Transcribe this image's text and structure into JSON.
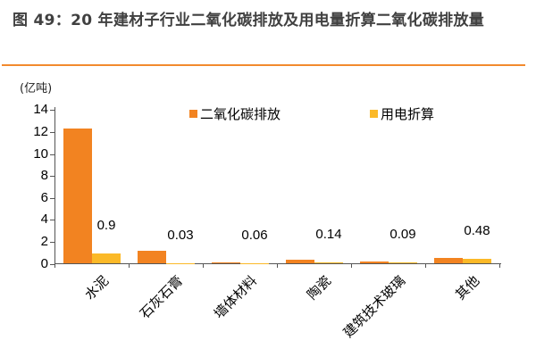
{
  "figure": {
    "title": "图 49：20 年建材子行业二氧化碳排放及用电量折算二氧化碳排放量",
    "unit_label": "(亿吨)"
  },
  "legend": [
    {
      "label": "二氧化碳排放",
      "color": "#f28321"
    },
    {
      "label": "用电折算",
      "color": "#fbb928"
    }
  ],
  "chart_data": {
    "type": "bar",
    "title": "20 年建材子行业二氧化碳排放及用电量折算二氧化碳排放量",
    "xlabel": "",
    "ylabel": "(亿吨)",
    "ylim": [
      0,
      14
    ],
    "yticks": [
      "0",
      "2",
      "4",
      "6",
      "8",
      "10",
      "12",
      "14"
    ],
    "grid": false,
    "legend_position": "top-right",
    "categories": [
      "水泥",
      "石灰石膏",
      "墙体材料",
      "陶瓷",
      "建筑技术玻璃",
      "其他"
    ],
    "series": [
      {
        "name": "二氧化碳排放",
        "color": "#f28321",
        "values": [
          12.3,
          1.2,
          0.15,
          0.35,
          0.22,
          0.5
        ]
      },
      {
        "name": "用电折算",
        "color": "#fbb928",
        "values": [
          0.9,
          0.03,
          0.06,
          0.14,
          0.09,
          0.48
        ],
        "data_labels": [
          "0.9",
          "0.03",
          "0.06",
          "0.14",
          "0.09",
          "0.48"
        ]
      }
    ]
  }
}
